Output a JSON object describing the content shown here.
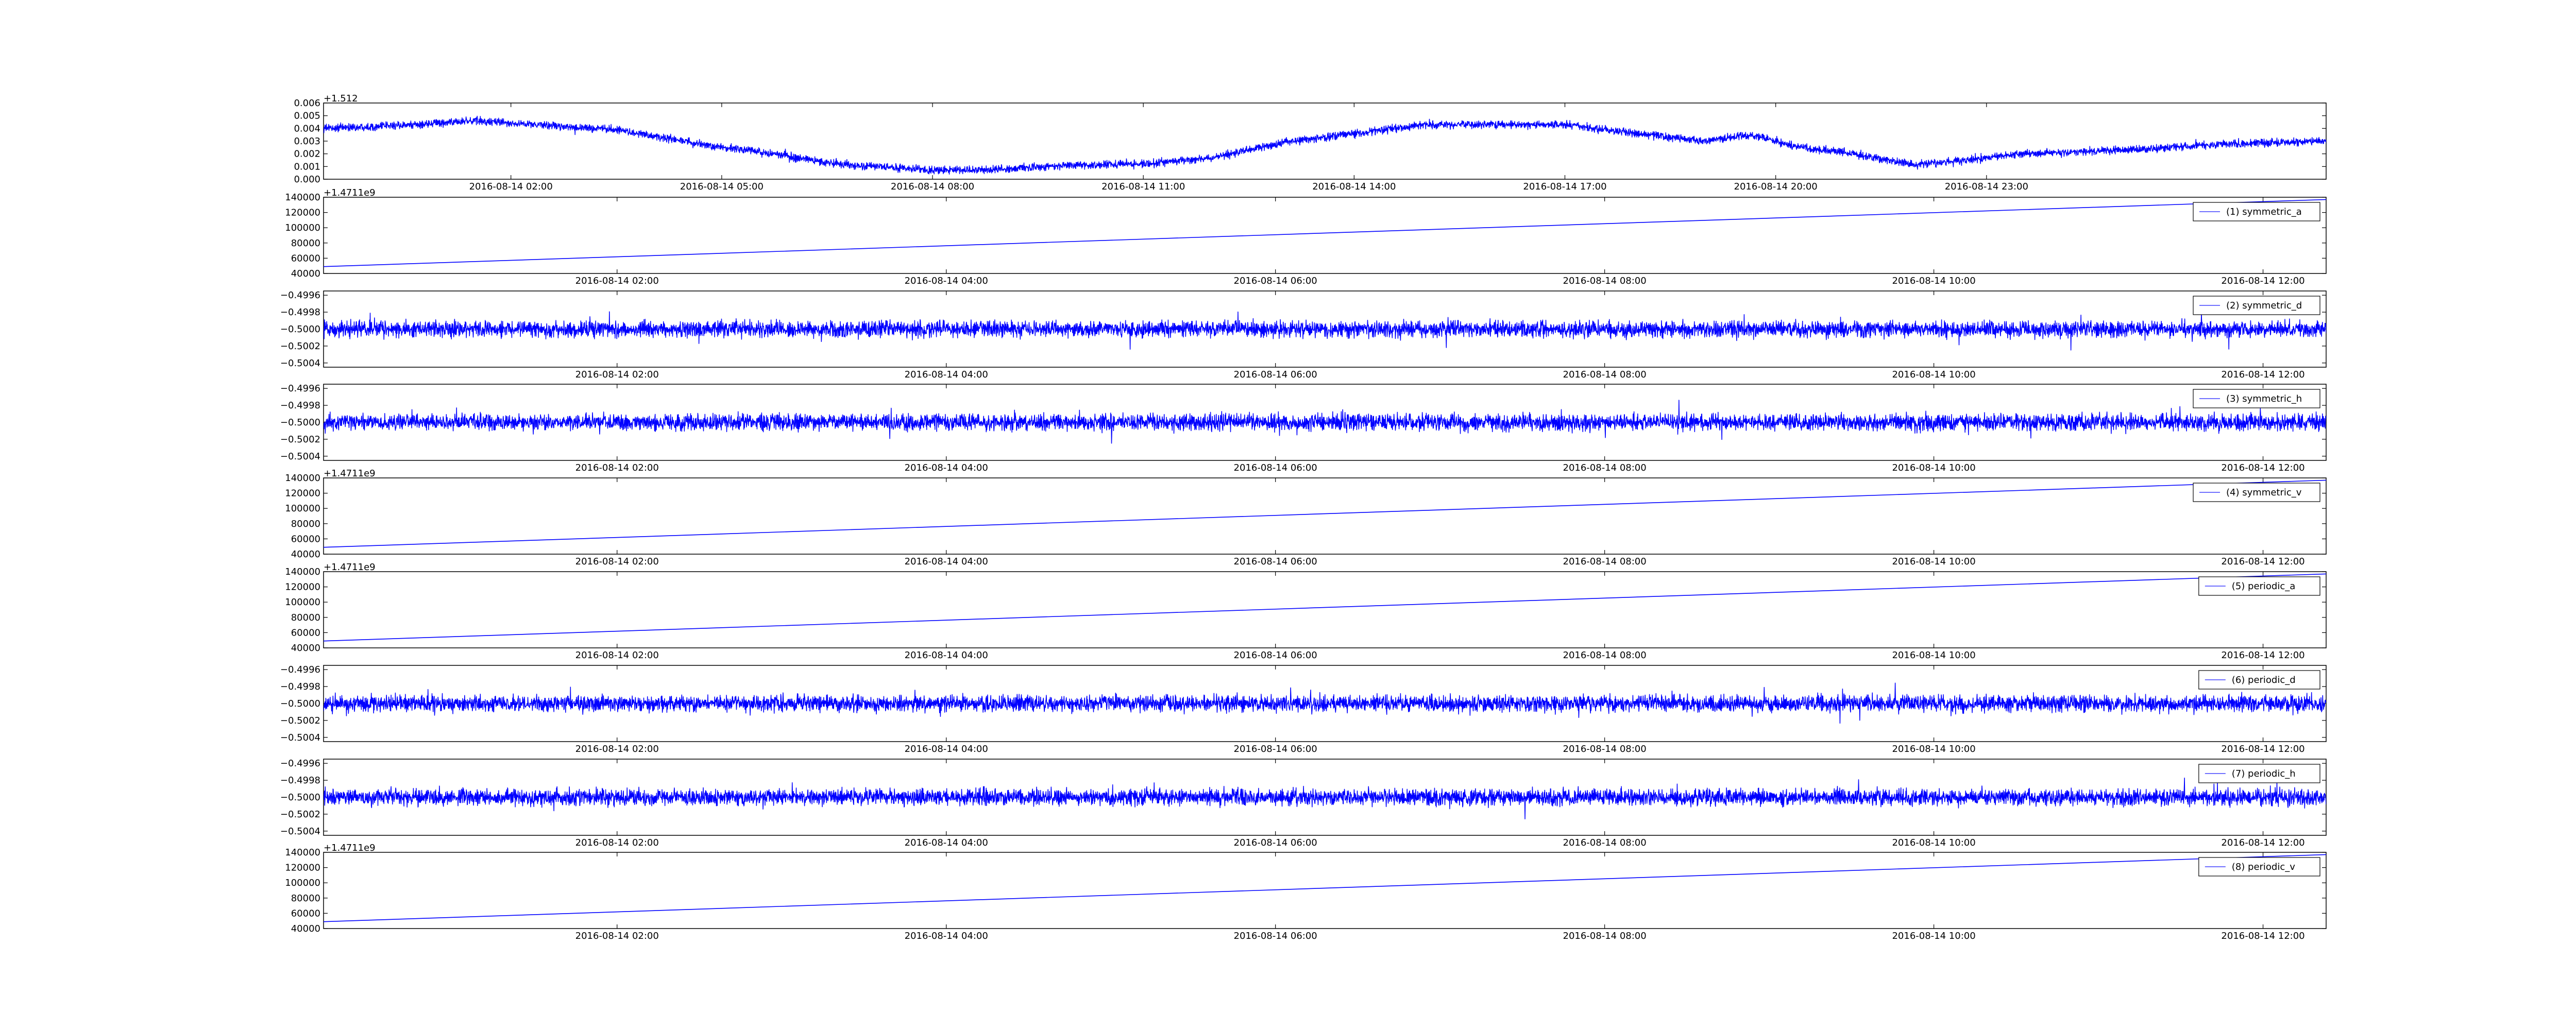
{
  "figure": {
    "line_color": "#0000ff",
    "legend_line_color": "#4040ff",
    "axis_color": "#000000",
    "background": "#ffffff"
  },
  "chart_data": [
    {
      "type": "line",
      "name": "",
      "offset_label": "+1.512",
      "xlim": [
        "2016-08-13 23:20",
        "2016-08-15 03:50"
      ],
      "ylim": [
        0,
        0.006
      ],
      "yticks": [
        "0.000",
        "0.001",
        "0.002",
        "0.003",
        "0.004",
        "0.005",
        "0.006"
      ],
      "xticks": [
        {
          "label": "2016-08-14 02:00",
          "x": "2016-08-14 02:00"
        },
        {
          "label": "2016-08-14 05:00",
          "x": "2016-08-14 05:00"
        },
        {
          "label": "2016-08-14 08:00",
          "x": "2016-08-14 08:00"
        },
        {
          "label": "2016-08-14 11:00",
          "x": "2016-08-14 11:00"
        },
        {
          "label": "2016-08-14 14:00",
          "x": "2016-08-14 14:00"
        },
        {
          "label": "2016-08-14 17:00",
          "x": "2016-08-14 17:00"
        },
        {
          "label": "2016-08-14 20:00",
          "x": "2016-08-14 20:00"
        },
        {
          "label": "2016-08-14 23:00",
          "x": "2016-08-14 23:00"
        }
      ],
      "series": [
        {
          "kind": "noisy",
          "noise_amplitude": 0.00045,
          "x": [
            "2016-08-13 23:20",
            "2016-08-14 00:40",
            "2016-08-14 01:30",
            "2016-08-14 03:30",
            "2016-08-14 05:00",
            "2016-08-14 05:45",
            "2016-08-14 06:30",
            "2016-08-14 07:15",
            "2016-08-14 08:00",
            "2016-08-14 09:00",
            "2016-08-14 10:00",
            "2016-08-14 11:00",
            "2016-08-14 12:00",
            "2016-08-14 13:00",
            "2016-08-14 14:00",
            "2016-08-14 15:00",
            "2016-08-14 17:00",
            "2016-08-14 18:00",
            "2016-08-14 19:00",
            "2016-08-14 19:40",
            "2016-08-14 20:15",
            "2016-08-14 21:00",
            "2016-08-14 22:00",
            "2016-08-14 23:30",
            "2016-08-15 01:00",
            "2016-08-15 02:30",
            "2016-08-15 03:50"
          ],
          "y": [
            0.004,
            0.0043,
            0.0046,
            0.0039,
            0.0025,
            0.002,
            0.0013,
            0.001,
            0.0007,
            0.0008,
            0.0011,
            0.0012,
            0.0017,
            0.0029,
            0.0036,
            0.0043,
            0.0043,
            0.0036,
            0.003,
            0.0035,
            0.0026,
            0.0021,
            0.0011,
            0.002,
            0.0023,
            0.0028,
            0.003
          ]
        }
      ]
    },
    {
      "type": "line",
      "offset_label": "+1.4711e9",
      "xlim": [
        "2016-08-14 00:13",
        "2016-08-14 12:23"
      ],
      "ylim": [
        40000,
        140000
      ],
      "yticks": [
        "40000",
        "60000",
        "80000",
        "100000",
        "120000",
        "140000"
      ],
      "xticks": [
        {
          "label": "2016-08-14 02:00",
          "x": "2016-08-14 02:00"
        },
        {
          "label": "2016-08-14 04:00",
          "x": "2016-08-14 04:00"
        },
        {
          "label": "2016-08-14 06:00",
          "x": "2016-08-14 06:00"
        },
        {
          "label": "2016-08-14 08:00",
          "x": "2016-08-14 08:00"
        },
        {
          "label": "2016-08-14 10:00",
          "x": "2016-08-14 10:00"
        },
        {
          "label": "2016-08-14 12:00",
          "x": "2016-08-14 12:00"
        }
      ],
      "legend": {
        "label": "(1) symmetric_a",
        "placement": "top-right"
      },
      "series": [
        {
          "name": "(1) symmetric_a",
          "kind": "linear",
          "x": [
            "2016-08-14 00:13",
            "2016-08-14 12:23"
          ],
          "y": [
            49000,
            137000
          ]
        }
      ]
    },
    {
      "type": "line",
      "offset_label": "",
      "xlim": [
        "2016-08-14 00:13",
        "2016-08-14 12:23"
      ],
      "ylim": [
        -0.50045,
        -0.49955
      ],
      "yticks": [
        "−0.5004",
        "−0.5002",
        "−0.5000",
        "−0.4998",
        "−0.4996"
      ],
      "ytick_values": [
        -0.5004,
        -0.5002,
        -0.5,
        -0.4998,
        -0.4996
      ],
      "xticks": [
        {
          "label": "2016-08-14 02:00",
          "x": "2016-08-14 02:00"
        },
        {
          "label": "2016-08-14 04:00",
          "x": "2016-08-14 04:00"
        },
        {
          "label": "2016-08-14 06:00",
          "x": "2016-08-14 06:00"
        },
        {
          "label": "2016-08-14 08:00",
          "x": "2016-08-14 08:00"
        },
        {
          "label": "2016-08-14 10:00",
          "x": "2016-08-14 10:00"
        },
        {
          "label": "2016-08-14 12:00",
          "x": "2016-08-14 12:00"
        }
      ],
      "legend": {
        "label": "(2) symmetric_d",
        "placement": "top-right"
      },
      "series": [
        {
          "name": "(2) symmetric_d",
          "kind": "noise",
          "center": -0.5,
          "noise_amplitude": 0.00014
        }
      ]
    },
    {
      "type": "line",
      "offset_label": "",
      "xlim": [
        "2016-08-14 00:13",
        "2016-08-14 12:23"
      ],
      "ylim": [
        -0.50045,
        -0.49955
      ],
      "yticks": [
        "−0.5004",
        "−0.5002",
        "−0.5000",
        "−0.4998",
        "−0.4996"
      ],
      "ytick_values": [
        -0.5004,
        -0.5002,
        -0.5,
        -0.4998,
        -0.4996
      ],
      "xticks": [
        {
          "label": "2016-08-14 02:00",
          "x": "2016-08-14 02:00"
        },
        {
          "label": "2016-08-14 04:00",
          "x": "2016-08-14 04:00"
        },
        {
          "label": "2016-08-14 06:00",
          "x": "2016-08-14 06:00"
        },
        {
          "label": "2016-08-14 08:00",
          "x": "2016-08-14 08:00"
        },
        {
          "label": "2016-08-14 10:00",
          "x": "2016-08-14 10:00"
        },
        {
          "label": "2016-08-14 12:00",
          "x": "2016-08-14 12:00"
        }
      ],
      "legend": {
        "label": "(3) symmetric_h",
        "placement": "top-right"
      },
      "series": [
        {
          "name": "(3) symmetric_h",
          "kind": "noise",
          "center": -0.5,
          "noise_amplitude": 0.00014
        }
      ]
    },
    {
      "type": "line",
      "offset_label": "+1.4711e9",
      "xlim": [
        "2016-08-14 00:13",
        "2016-08-14 12:23"
      ],
      "ylim": [
        40000,
        140000
      ],
      "yticks": [
        "40000",
        "60000",
        "80000",
        "100000",
        "120000",
        "140000"
      ],
      "xticks": [
        {
          "label": "2016-08-14 02:00",
          "x": "2016-08-14 02:00"
        },
        {
          "label": "2016-08-14 04:00",
          "x": "2016-08-14 04:00"
        },
        {
          "label": "2016-08-14 06:00",
          "x": "2016-08-14 06:00"
        },
        {
          "label": "2016-08-14 08:00",
          "x": "2016-08-14 08:00"
        },
        {
          "label": "2016-08-14 10:00",
          "x": "2016-08-14 10:00"
        },
        {
          "label": "2016-08-14 12:00",
          "x": "2016-08-14 12:00"
        }
      ],
      "legend": {
        "label": "(4) symmetric_v",
        "placement": "top-right"
      },
      "series": [
        {
          "name": "(4) symmetric_v",
          "kind": "linear",
          "x": [
            "2016-08-14 00:13",
            "2016-08-14 12:23"
          ],
          "y": [
            49000,
            137000
          ]
        }
      ]
    },
    {
      "type": "line",
      "offset_label": "+1.4711e9",
      "xlim": [
        "2016-08-14 00:13",
        "2016-08-14 12:23"
      ],
      "ylim": [
        40000,
        140000
      ],
      "yticks": [
        "40000",
        "60000",
        "80000",
        "100000",
        "120000",
        "140000"
      ],
      "xticks": [
        {
          "label": "2016-08-14 02:00",
          "x": "2016-08-14 02:00"
        },
        {
          "label": "2016-08-14 04:00",
          "x": "2016-08-14 04:00"
        },
        {
          "label": "2016-08-14 06:00",
          "x": "2016-08-14 06:00"
        },
        {
          "label": "2016-08-14 08:00",
          "x": "2016-08-14 08:00"
        },
        {
          "label": "2016-08-14 10:00",
          "x": "2016-08-14 10:00"
        },
        {
          "label": "2016-08-14 12:00",
          "x": "2016-08-14 12:00"
        }
      ],
      "legend": {
        "label": "(5) periodic_a",
        "placement": "top-right"
      },
      "series": [
        {
          "name": "(5) periodic_a",
          "kind": "linear",
          "x": [
            "2016-08-14 00:13",
            "2016-08-14 12:23"
          ],
          "y": [
            49000,
            137000
          ]
        }
      ]
    },
    {
      "type": "line",
      "offset_label": "",
      "xlim": [
        "2016-08-14 00:13",
        "2016-08-14 12:23"
      ],
      "ylim": [
        -0.50045,
        -0.49955
      ],
      "yticks": [
        "−0.5004",
        "−0.5002",
        "−0.5000",
        "−0.4998",
        "−0.4996"
      ],
      "ytick_values": [
        -0.5004,
        -0.5002,
        -0.5,
        -0.4998,
        -0.4996
      ],
      "xticks": [
        {
          "label": "2016-08-14 02:00",
          "x": "2016-08-14 02:00"
        },
        {
          "label": "2016-08-14 04:00",
          "x": "2016-08-14 04:00"
        },
        {
          "label": "2016-08-14 06:00",
          "x": "2016-08-14 06:00"
        },
        {
          "label": "2016-08-14 08:00",
          "x": "2016-08-14 08:00"
        },
        {
          "label": "2016-08-14 10:00",
          "x": "2016-08-14 10:00"
        },
        {
          "label": "2016-08-14 12:00",
          "x": "2016-08-14 12:00"
        }
      ],
      "legend": {
        "label": "(6) periodic_d",
        "placement": "top-right"
      },
      "series": [
        {
          "name": "(6) periodic_d",
          "kind": "noise",
          "center": -0.5,
          "noise_amplitude": 0.00014
        }
      ]
    },
    {
      "type": "line",
      "offset_label": "",
      "xlim": [
        "2016-08-14 00:13",
        "2016-08-14 12:23"
      ],
      "ylim": [
        -0.50045,
        -0.49955
      ],
      "yticks": [
        "−0.5004",
        "−0.5002",
        "−0.5000",
        "−0.4998",
        "−0.4996"
      ],
      "ytick_values": [
        -0.5004,
        -0.5002,
        -0.5,
        -0.4998,
        -0.4996
      ],
      "xticks": [
        {
          "label": "2016-08-14 02:00",
          "x": "2016-08-14 02:00"
        },
        {
          "label": "2016-08-14 04:00",
          "x": "2016-08-14 04:00"
        },
        {
          "label": "2016-08-14 06:00",
          "x": "2016-08-14 06:00"
        },
        {
          "label": "2016-08-14 08:00",
          "x": "2016-08-14 08:00"
        },
        {
          "label": "2016-08-14 10:00",
          "x": "2016-08-14 10:00"
        },
        {
          "label": "2016-08-14 12:00",
          "x": "2016-08-14 12:00"
        }
      ],
      "legend": {
        "label": "(7) periodic_h",
        "placement": "top-right"
      },
      "series": [
        {
          "name": "(7) periodic_h",
          "kind": "noise",
          "center": -0.5,
          "noise_amplitude": 0.00014
        }
      ]
    },
    {
      "type": "line",
      "offset_label": "+1.4711e9",
      "xlim": [
        "2016-08-14 00:13",
        "2016-08-14 12:23"
      ],
      "ylim": [
        40000,
        140000
      ],
      "yticks": [
        "40000",
        "60000",
        "80000",
        "100000",
        "120000",
        "140000"
      ],
      "xticks": [
        {
          "label": "2016-08-14 02:00",
          "x": "2016-08-14 02:00"
        },
        {
          "label": "2016-08-14 04:00",
          "x": "2016-08-14 04:00"
        },
        {
          "label": "2016-08-14 06:00",
          "x": "2016-08-14 06:00"
        },
        {
          "label": "2016-08-14 08:00",
          "x": "2016-08-14 08:00"
        },
        {
          "label": "2016-08-14 10:00",
          "x": "2016-08-14 10:00"
        },
        {
          "label": "2016-08-14 12:00",
          "x": "2016-08-14 12:00"
        }
      ],
      "legend": {
        "label": "(8) periodic_v",
        "placement": "top-right"
      },
      "series": [
        {
          "name": "(8) periodic_v",
          "kind": "linear",
          "x": [
            "2016-08-14 00:13",
            "2016-08-14 12:23"
          ],
          "y": [
            49000,
            137000
          ]
        }
      ]
    }
  ]
}
